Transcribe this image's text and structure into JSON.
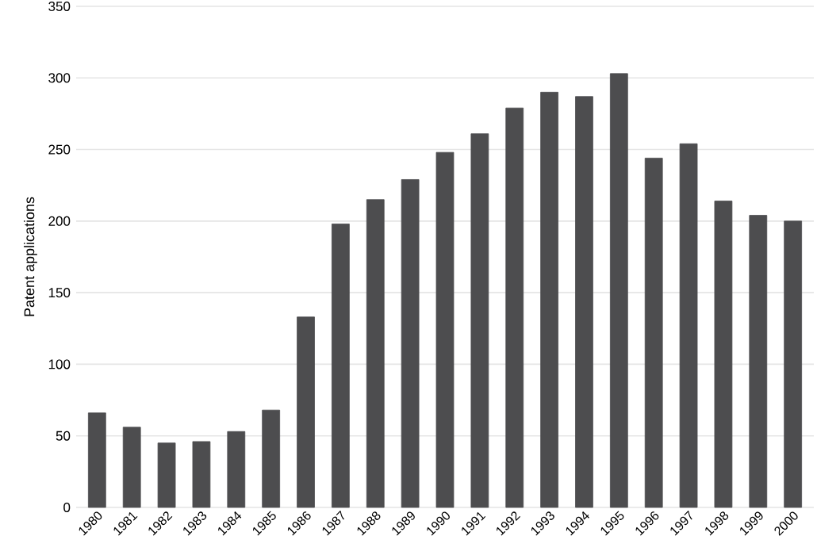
{
  "chart_data": {
    "type": "bar",
    "ylabel": "Patent applications",
    "categories": [
      "1980",
      "1981",
      "1982",
      "1983",
      "1984",
      "1985",
      "1986",
      "1987",
      "1988",
      "1989",
      "1990",
      "1991",
      "1992",
      "1993",
      "1994",
      "1995",
      "1996",
      "1997",
      "1998",
      "1999",
      "2000"
    ],
    "values": [
      66,
      56,
      45,
      46,
      53,
      68,
      133,
      198,
      215,
      229,
      248,
      261,
      279,
      290,
      287,
      303,
      244,
      254,
      214,
      204,
      200
    ],
    "color": "#4d4d4f",
    "ylim": [
      0,
      350
    ],
    "yticks": [
      0,
      50,
      100,
      150,
      200,
      250,
      300,
      350
    ],
    "grid": "y"
  }
}
